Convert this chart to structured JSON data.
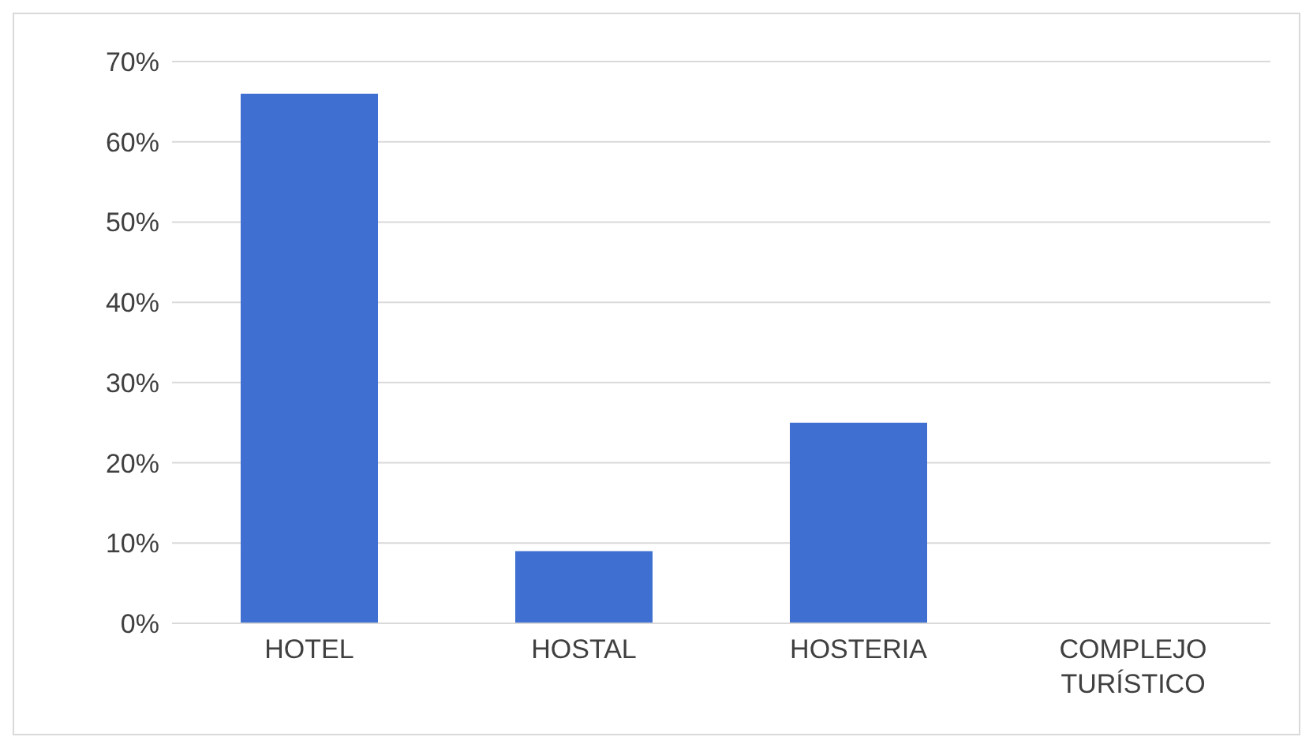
{
  "chart_data": {
    "type": "bar",
    "categories": [
      "HOTEL",
      "HOSTAL",
      "HOSTERIA",
      "COMPLEJO TURÍSTICO"
    ],
    "values": [
      66,
      9,
      25,
      0
    ],
    "color": "#3f6fd0",
    "ylim": [
      0,
      70
    ],
    "yticks": [
      {
        "value": 0,
        "label": "0%"
      },
      {
        "value": 10,
        "label": "10%"
      },
      {
        "value": 20,
        "label": "20%"
      },
      {
        "value": 30,
        "label": "30%"
      },
      {
        "value": 40,
        "label": "40%"
      },
      {
        "value": 50,
        "label": "50%"
      },
      {
        "value": 60,
        "label": "60%"
      },
      {
        "value": 70,
        "label": "70%"
      }
    ],
    "grid": "y"
  }
}
